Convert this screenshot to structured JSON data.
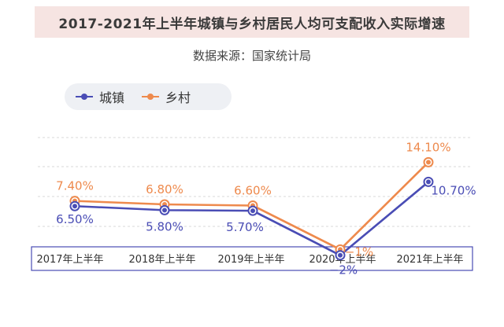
{
  "header": {
    "title": "2017-2021年上半年城镇与乡村居民人均可支配收入实际增速",
    "source": "数据来源：国家统计局"
  },
  "colors": {
    "urban": "#4a4db5",
    "rural": "#ee8a4d",
    "grid": "#d8d8d8",
    "axis_box": "#4a4db5"
  },
  "chart_data": {
    "type": "line",
    "title": "2017-2021年上半年城镇与乡村居民人均可支配收入实际增速",
    "subtitle": "数据来源：国家统计局",
    "categories": [
      "2017年上半年",
      "2018年上半年",
      "2019年上半年",
      "2020年上半年",
      "2021年上半年"
    ],
    "series": [
      {
        "name": "城镇",
        "values": [
          6.5,
          5.8,
          5.7,
          -2,
          10.7
        ],
        "labels": [
          "6.50%",
          "5.80%",
          "5.70%",
          "−2%",
          "10.70%"
        ]
      },
      {
        "name": "乡村",
        "values": [
          7.4,
          6.8,
          6.6,
          -1,
          14.1
        ],
        "labels": [
          "7.40%",
          "6.80%",
          "6.60%",
          "−1%",
          "14.10%"
        ]
      }
    ],
    "legend_position": "top-left",
    "grid": true
  }
}
